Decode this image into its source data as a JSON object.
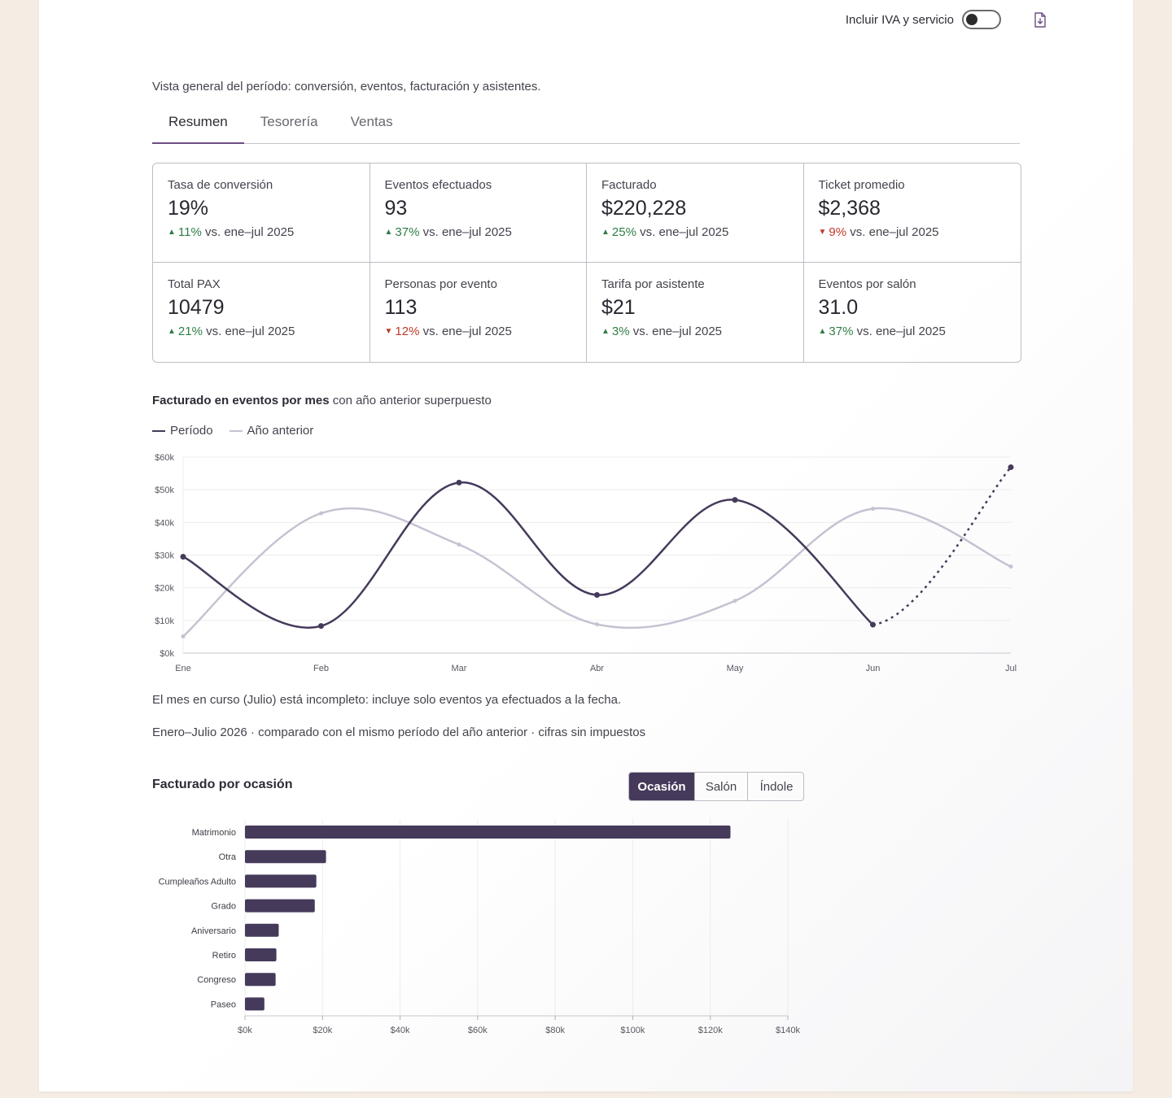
{
  "header": {
    "toggle_label": "Incluir IVA y servicio",
    "toggle_on": false,
    "export_icon": "file-download-icon"
  },
  "subtitle": "Vista general del período: conversión, eventos, facturación y asistentes.",
  "tabs": [
    {
      "label": "Resumen",
      "active": true
    },
    {
      "label": "Tesorería",
      "active": false
    },
    {
      "label": "Ventas",
      "active": false
    }
  ],
  "kpis": [
    {
      "label": "Tasa de conversión",
      "value": "19%",
      "delta": "11%",
      "direction": "up",
      "compare": "vs. ene–jul 2025"
    },
    {
      "label": "Eventos efectuados",
      "value": "93",
      "delta": "37%",
      "direction": "up",
      "compare": "vs. ene–jul 2025"
    },
    {
      "label": "Facturado",
      "value": "$220,228",
      "delta": "25%",
      "direction": "up",
      "compare": "vs. ene–jul 2025"
    },
    {
      "label": "Ticket promedio",
      "value": "$2,368",
      "delta": "9%",
      "direction": "down",
      "compare": "vs. ene–jul 2025"
    },
    {
      "label": "Total PAX",
      "value": "10479",
      "delta": "21%",
      "direction": "up",
      "compare": "vs. ene–jul 2025"
    },
    {
      "label": "Personas por evento",
      "value": "113",
      "delta": "12%",
      "direction": "down",
      "compare": "vs. ene–jul 2025"
    },
    {
      "label": "Tarifa por asistente",
      "value": "$21",
      "delta": "3%",
      "direction": "up",
      "compare": "vs. ene–jul 2025"
    },
    {
      "label": "Eventos por salón",
      "value": "31.0",
      "delta": "37%",
      "direction": "up",
      "compare": "vs. ene–jul 2025"
    }
  ],
  "line_section": {
    "title_bold": "Facturado en eventos por mes",
    "title_rest": " con año anterior superpuesto",
    "legend": [
      {
        "name": "Período",
        "color": "#463a5b"
      },
      {
        "name": "Año anterior",
        "color": "#c6c2d1"
      }
    ],
    "note": "El mes en curso (Julio) está incompleto: incluye solo eventos ya efectuados a la fecha.",
    "footnote": "Enero–Julio 2026 · comparado con el mismo período del año anterior · cifras sin impuestos"
  },
  "bar_section": {
    "title": "Facturado por ocasión",
    "segments": [
      {
        "label": "Ocasión",
        "active": true
      },
      {
        "label": "Salón",
        "active": false
      },
      {
        "label": "Índole",
        "active": false
      }
    ]
  },
  "chart_data": [
    {
      "type": "line",
      "title": "Facturado en eventos por mes",
      "categories": [
        "Ene",
        "Feb",
        "Mar",
        "Abr",
        "May",
        "Jun",
        "Jul"
      ],
      "ylim": [
        0,
        60000
      ],
      "yticks": [
        "$0k",
        "$10k",
        "$20k",
        "$30k",
        "$40k",
        "$50k",
        "$60k"
      ],
      "grid": true,
      "series": [
        {
          "name": "Período",
          "values": [
            29500,
            8300,
            52200,
            17800,
            46900,
            8700,
            56900
          ],
          "color": "#463a5b",
          "incomplete_last": true
        },
        {
          "name": "Año anterior",
          "values": [
            5100,
            42800,
            33200,
            8800,
            16000,
            44200,
            26500
          ],
          "color": "#c6c2d1"
        }
      ]
    },
    {
      "type": "bar",
      "orientation": "horizontal",
      "title": "Facturado por ocasión",
      "categories": [
        "Matrimonio",
        "Otra",
        "Cumpleaños Adulto",
        "Grado",
        "Aniversario",
        "Retiro",
        "Congreso",
        "Paseo"
      ],
      "values": [
        125200,
        20900,
        18400,
        18000,
        8700,
        8100,
        7900,
        5000
      ],
      "xlim": [
        0,
        140000
      ],
      "xticks": [
        "$0k",
        "$20k",
        "$40k",
        "$60k",
        "$80k",
        "$100k",
        "$120k",
        "$140k"
      ],
      "color": "#463a5b",
      "grid": true
    }
  ]
}
